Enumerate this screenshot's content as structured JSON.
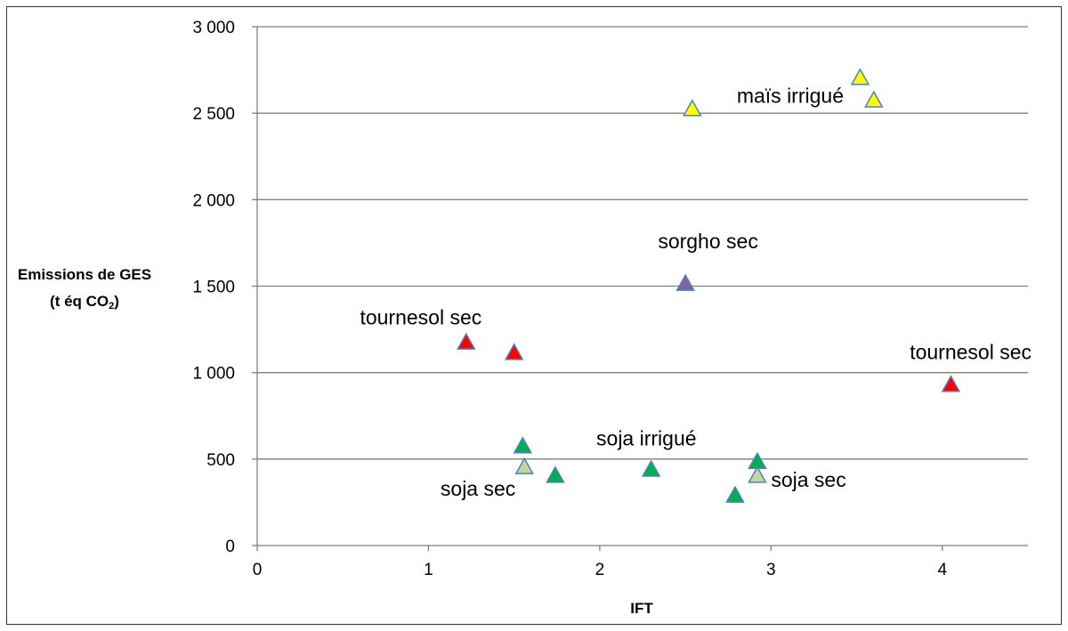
{
  "chart_data": {
    "type": "scatter",
    "title": "",
    "xlabel": "IFT",
    "ylabel": {
      "line1": "Emissions de GES",
      "line2_prefix": "(t éq CO",
      "line2_sub": "2",
      "line2_suffix": ")"
    },
    "xlim": [
      0,
      4.5
    ],
    "ylim": [
      0,
      3000
    ],
    "xticks": [
      {
        "value": 0,
        "label": "0"
      },
      {
        "value": 1,
        "label": "1"
      },
      {
        "value": 2,
        "label": "2"
      },
      {
        "value": 3,
        "label": "3"
      },
      {
        "value": 4,
        "label": "4"
      }
    ],
    "yticks": [
      {
        "value": 0,
        "label": "0"
      },
      {
        "value": 500,
        "label": "500"
      },
      {
        "value": 1000,
        "label": "1 000"
      },
      {
        "value": 1500,
        "label": "1 500"
      },
      {
        "value": 2000,
        "label": "2 000"
      },
      {
        "value": 2500,
        "label": "2 500"
      },
      {
        "value": 3000,
        "label": "3 000"
      }
    ],
    "grid": "horizontal",
    "series": [
      {
        "name": "maïs irrigué",
        "color": "#ffff00",
        "marker": "triangle",
        "points": [
          {
            "x": 2.54,
            "y": 2530
          },
          {
            "x": 3.52,
            "y": 2710
          },
          {
            "x": 3.6,
            "y": 2580
          }
        ]
      },
      {
        "name": "sorgho sec",
        "color": "#8064a2",
        "marker": "triangle",
        "points": [
          {
            "x": 2.5,
            "y": 1520
          }
        ]
      },
      {
        "name": "tournesol sec",
        "color": "#ff0000",
        "marker": "triangle",
        "points": [
          {
            "x": 1.22,
            "y": 1180
          },
          {
            "x": 1.5,
            "y": 1120
          },
          {
            "x": 4.05,
            "y": 935
          }
        ]
      },
      {
        "name": "soja irrigué",
        "color": "#00b050",
        "marker": "triangle",
        "points": [
          {
            "x": 1.55,
            "y": 580
          },
          {
            "x": 1.74,
            "y": 410
          },
          {
            "x": 2.3,
            "y": 445
          },
          {
            "x": 2.79,
            "y": 295
          },
          {
            "x": 2.92,
            "y": 490
          }
        ]
      },
      {
        "name": "soja sec",
        "color": "#c3d69b",
        "marker": "triangle",
        "points": [
          {
            "x": 1.56,
            "y": 460
          },
          {
            "x": 2.92,
            "y": 410
          }
        ]
      }
    ],
    "annotations": [
      {
        "text": "maïs irrigué",
        "x": 2.8,
        "y": 2600
      },
      {
        "text": "sorgho sec",
        "x": 2.34,
        "y": 1760
      },
      {
        "text": "tournesol sec",
        "x": 0.6,
        "y": 1320
      },
      {
        "text": "tournesol sec",
        "x": 3.81,
        "y": 1120
      },
      {
        "text": "soja irrigué",
        "x": 1.98,
        "y": 620
      },
      {
        "text": "soja sec",
        "x": 1.07,
        "y": 330
      },
      {
        "text": "soja sec",
        "x": 3.0,
        "y": 380
      }
    ]
  }
}
